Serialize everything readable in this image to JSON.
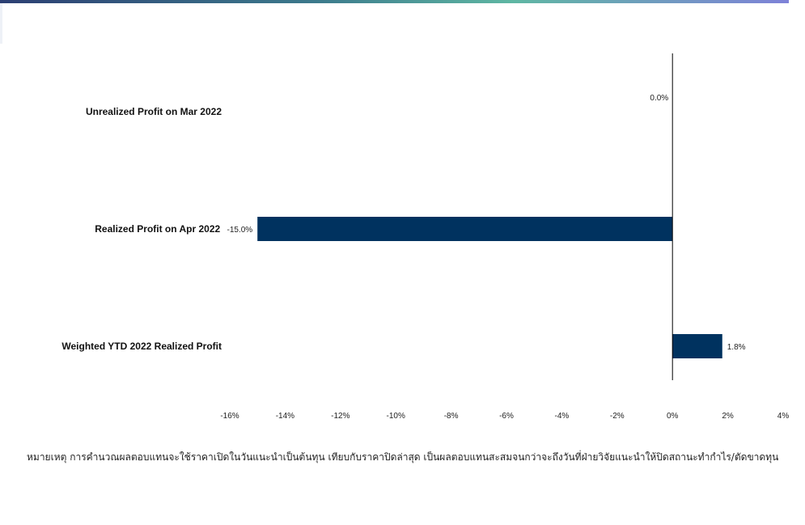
{
  "chart_data": {
    "type": "bar",
    "orientation": "horizontal",
    "categories": [
      "Unrealized Profit on Mar 2022",
      "Realized Profit on Apr 2022",
      "Weighted YTD 2022  Realized Profit"
    ],
    "values": [
      0.0,
      -15.0,
      1.8
    ],
    "data_labels": [
      "0.0%",
      "-15.0%",
      "1.8%"
    ],
    "xlim": [
      -16,
      4
    ],
    "x_ticks": [
      -16,
      -14,
      -12,
      -10,
      -8,
      -6,
      -4,
      -2,
      0,
      2,
      4
    ],
    "x_tick_labels": [
      "-16%",
      "-14%",
      "-12%",
      "-10%",
      "-8%",
      "-6%",
      "-4%",
      "-2%",
      "0%",
      "2%",
      "4%"
    ],
    "title": "",
    "xlabel": "",
    "ylabel": "",
    "grid": false,
    "bar_color": "#00325f"
  },
  "footnote": "หมายเหตุ การคำนวณผลตอบแทนจะใช้ราคาเปิดในวันแนะนำเป็นต้นทุน  เทียบกับราคาปิดล่าสุด  เป็นผลตอบแทนสะสมจนกว่าจะถึงวันที่ฝ่ายวิจัยแนะนำให้ปิดสถานะทำกำไร/ตัดขาดทุน"
}
